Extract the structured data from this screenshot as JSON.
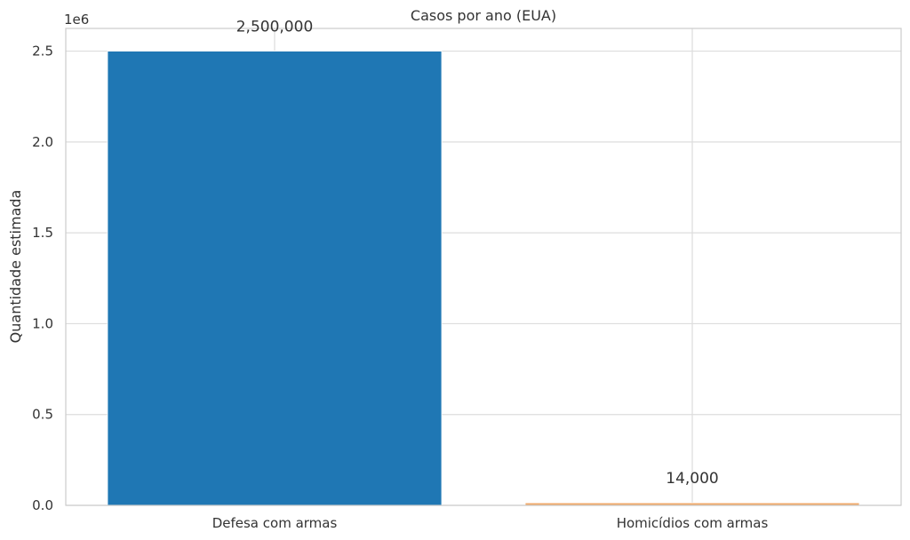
{
  "chart_data": {
    "type": "bar",
    "title": "Casos por ano (EUA)",
    "xlabel": "",
    "ylabel": "Quantidade estimada",
    "y_offset_label": "1e6",
    "categories": [
      "Defesa com armas",
      "Homicídios com armas"
    ],
    "values": [
      2500000,
      14000
    ],
    "data_labels": [
      "2,500,000",
      "14,000"
    ],
    "colors": [
      "#1f77b4",
      "#f0a868"
    ],
    "ylim": [
      0,
      2625000
    ],
    "yticks": [
      0,
      500000,
      1000000,
      1500000,
      2000000,
      2500000
    ],
    "ytick_labels": [
      "0.0",
      "0.5",
      "1.0",
      "1.5",
      "2.0",
      "2.5"
    ],
    "grid": true,
    "legend": "none"
  }
}
